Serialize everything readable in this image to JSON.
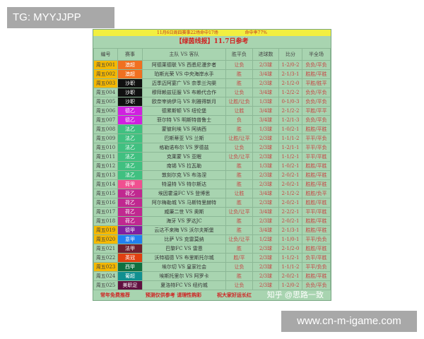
{
  "overlay": {
    "tag": "TG: MYYJJPP",
    "site": "www.cn-m-igame.com",
    "watermark": "知乎 @思路一致"
  },
  "banner": {
    "left": "11月6日周四赛事22场命中17场",
    "right": "命中率77%"
  },
  "title": "【绿茵线报】11.7日参考",
  "columns": [
    "编号",
    "赛事",
    "主队 VS 客队",
    "胜平负",
    "进球数",
    "比分",
    "半全场"
  ],
  "rows": [
    {
      "id": "周五001",
      "hl": true,
      "league": "澳超",
      "color": "#f07020",
      "match": "阿德莱德联 VS 西悉尼漫步者",
      "res": "让负",
      "goal": "2/3球",
      "score": "1-2/0-2",
      "half": "负负/平负"
    },
    {
      "id": "周五002",
      "hl": true,
      "league": "澳超",
      "color": "#f07020",
      "match": "珀斯光荣 VS 中央海岸水手",
      "res": "胜",
      "goal": "3/4球",
      "score": "2-1/3-1",
      "half": "胜胜/平胜"
    },
    {
      "id": "周五003",
      "hl": true,
      "league": "沙职",
      "color": "#101010",
      "match": "迈季迈阿宴广 VS 奈季兰沟渠",
      "res": "胜",
      "goal": "2/3球",
      "score": "2-1/2-0",
      "half": "平胜/胜平"
    },
    {
      "id": "周五004",
      "hl": false,
      "league": "沙职",
      "color": "#101010",
      "match": "穆拜赖兹征服 VS 布赖代合作",
      "res": "让负",
      "goal": "3/4球",
      "score": "1-2/2-2",
      "half": "负负/平负"
    },
    {
      "id": "周五005",
      "hl": false,
      "league": "沙职",
      "color": "#101010",
      "match": "欧奈宰纳伊马 VS 利雅得新月",
      "res": "让胜/让负",
      "goal": "1/3球",
      "score": "0-1/0-3",
      "half": "负负/平负"
    },
    {
      "id": "周五006",
      "hl": false,
      "league": "德乙",
      "color": "#d020e0",
      "match": "德累斯顿 VS 纽伦堡",
      "res": "让胜",
      "goal": "3/4球",
      "score": "2-1/2-2",
      "half": "平胜/平平"
    },
    {
      "id": "周五007",
      "hl": false,
      "league": "德乙",
      "color": "#d020e0",
      "match": "菲尔特 VS 明斯特普鲁士",
      "res": "负",
      "goal": "3/4球",
      "score": "1-2/1-3",
      "half": "负负/平负"
    },
    {
      "id": "周五008",
      "hl": false,
      "league": "法乙",
      "color": "#40c080",
      "match": "蒙彼利埃 VS 阿纳西",
      "res": "胜",
      "goal": "1/3球",
      "score": "1-0/2-1",
      "half": "胜胜/平胜"
    },
    {
      "id": "周五009",
      "hl": false,
      "league": "法乙",
      "color": "#40c080",
      "match": "巴斯蒂亚 VS 兰斯",
      "res": "让胜/让平",
      "goal": "2/3球",
      "score": "1-1/1-2",
      "half": "平平/平负"
    },
    {
      "id": "周五010",
      "hl": false,
      "league": "法乙",
      "color": "#40c080",
      "match": "格勒诺布尔 VS 罗德兹",
      "res": "让负",
      "goal": "2/3球",
      "score": "1-2/1-1",
      "half": "平平/平负"
    },
    {
      "id": "周五011",
      "hl": false,
      "league": "法乙",
      "color": "#40c080",
      "match": "克莱蒙 VS 亚眠",
      "res": "让负/让平",
      "goal": "2/3球",
      "score": "1-1/2-1",
      "half": "平平/平胜"
    },
    {
      "id": "周五012",
      "hl": false,
      "league": "法乙",
      "color": "#40c080",
      "match": "南锡 VS 拉瓦勒",
      "res": "胜",
      "goal": "1/3球",
      "score": "1-0/2-1",
      "half": "胜胜/平胜"
    },
    {
      "id": "周五013",
      "hl": false,
      "league": "法乙",
      "color": "#40c080",
      "match": "敦刻尔克 VS 布洛涅",
      "res": "胜",
      "goal": "2/3球",
      "score": "2-0/2-1",
      "half": "胜胜/平胜"
    },
    {
      "id": "周五014",
      "hl": false,
      "league": "荷甲",
      "color": "#f05090",
      "match": "特温特 VS 特尔斯达",
      "res": "胜",
      "goal": "2/3球",
      "score": "2-0/2-1",
      "half": "胜胜/平胜"
    },
    {
      "id": "周五015",
      "hl": false,
      "league": "荷乙",
      "color": "#c02890",
      "match": "埃因霍温FC VS 登博思",
      "res": "让胜",
      "goal": "3/4球",
      "score": "2-1/2-2",
      "half": "胜胜/负平"
    },
    {
      "id": "周五016",
      "hl": false,
      "league": "荷乙",
      "color": "#c02890",
      "match": "阿尔梅勒城 VS 马斯特里赫特",
      "res": "胜",
      "goal": "2/3球",
      "score": "2-0/2-1",
      "half": "胜胜/平胜"
    },
    {
      "id": "周五017",
      "hl": false,
      "league": "荷乙",
      "color": "#c02890",
      "match": "威廉二世 VS 奥斯",
      "res": "让负/让平",
      "goal": "3/4球",
      "score": "2-2/2-1",
      "half": "平平/平胜"
    },
    {
      "id": "周五018",
      "hl": false,
      "league": "荷乙",
      "color": "#c02890",
      "match": "海牙 VS 罗达JC",
      "res": "胜",
      "goal": "2/3球",
      "score": "2-0/2-1",
      "half": "胜胜/平胜"
    },
    {
      "id": "周五019",
      "hl": true,
      "league": "德甲",
      "color": "#8020a0",
      "match": "云达不来梅 VS 沃尔夫斯堡",
      "res": "胜",
      "goal": "3/4球",
      "score": "2-1/3-1",
      "half": "胜胜/平胜"
    },
    {
      "id": "周五020",
      "hl": true,
      "league": "意甲",
      "color": "#2080f0",
      "match": "比萨 VS 克雷莫纳",
      "res": "让负/让平",
      "goal": "1/2球",
      "score": "1-1/0-1",
      "half": "平平/负负"
    },
    {
      "id": "周五021",
      "hl": false,
      "league": "法甲",
      "color": "#702030",
      "match": "巴黎FC VS 雷恩",
      "res": "胜",
      "goal": "2/3球",
      "score": "2-1/2-0",
      "half": "胜胜/平胜"
    },
    {
      "id": "周五022",
      "hl": false,
      "league": "英冠",
      "color": "#e04010",
      "match": "沃特福德 VS 布里斯托尔城",
      "res": "胜/平",
      "goal": "2/3球",
      "score": "1-1/2-1",
      "half": "负平/平胜"
    },
    {
      "id": "周五023",
      "hl": true,
      "league": "西甲",
      "color": "#107040",
      "match": "埃尔切 VS 皇家社会",
      "res": "让负",
      "goal": "2/3球",
      "score": "1-1/1-2",
      "half": "平平/负负"
    },
    {
      "id": "周五024",
      "hl": false,
      "league": "葡超",
      "color": "#109090",
      "match": "埃斯托里尔 VS 阿罗卡",
      "res": "胜",
      "goal": "2/3球",
      "score": "2-0/2-1",
      "half": "胜胜/平胜"
    },
    {
      "id": "周五025",
      "hl": false,
      "league": "美职足",
      "color": "#601040",
      "match": "夏洛特FC VS 纽约城",
      "res": "让负",
      "goal": "2/3球",
      "score": "1-2/0-2",
      "half": "负负/平负"
    }
  ],
  "footer": [
    "常年免费推荐",
    "预测仅供参考  请理性购彩",
    "祝大家好运长红"
  ]
}
